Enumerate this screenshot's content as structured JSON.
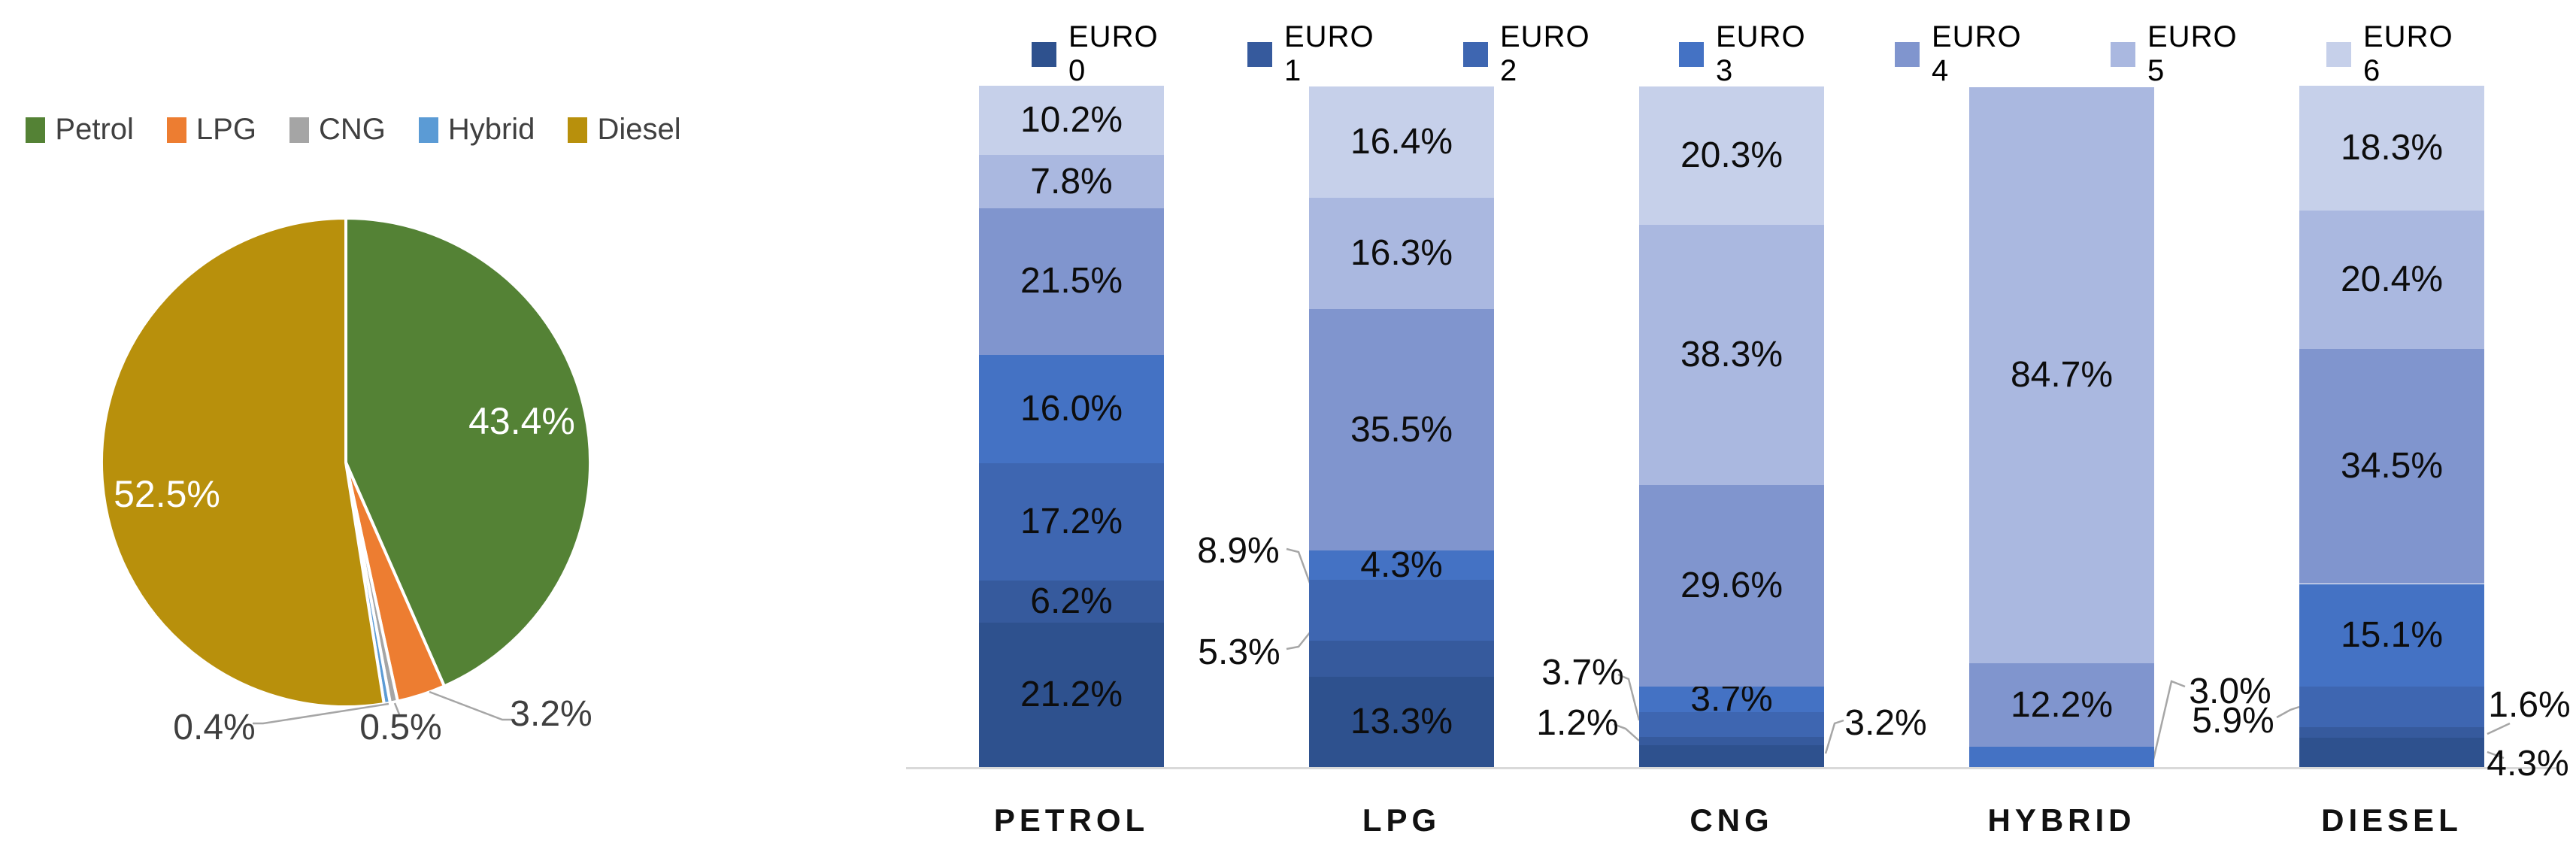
{
  "chart_data": [
    {
      "type": "pie",
      "title": "",
      "legend_position": "top",
      "start_angle_deg_from_top": 0,
      "direction": "clockwise",
      "slices": [
        {
          "label": "Petrol",
          "value": 43.4,
          "label_text": "43.4%",
          "color": "#548235",
          "label_inside": true
        },
        {
          "label": "LPG",
          "value": 3.2,
          "label_text": "3.2%",
          "color": "#ED7D31",
          "label_inside": false
        },
        {
          "label": "CNG",
          "value": 0.5,
          "label_text": "0.5%",
          "color": "#A5A5A5",
          "label_inside": false
        },
        {
          "label": "Hybrid",
          "value": 0.4,
          "label_text": "0.4%",
          "color": "#5B9BD5",
          "label_inside": false
        },
        {
          "label": "Diesel",
          "value": 52.5,
          "label_text": "52.5%",
          "color": "#B8900C",
          "label_inside": true
        }
      ],
      "slice_border_color": "#FFFFFF",
      "leader_line_color": "#A6A6A6"
    },
    {
      "type": "stacked_bar_100",
      "title": "",
      "legend_position": "top",
      "grid": false,
      "ylim": [
        0,
        100
      ],
      "axis_line_color": "#D9D9D9",
      "categories": [
        "PETROL",
        "LPG",
        "CNG",
        "HYBRID",
        "DIESEL"
      ],
      "series": [
        {
          "name": "EURO 0",
          "color": "#2E518E",
          "values": [
            21.2,
            13.3,
            3.2,
            0,
            4.3
          ]
        },
        {
          "name": "EURO 1",
          "color": "#365A9D",
          "values": [
            6.2,
            5.3,
            1.2,
            0,
            1.6
          ]
        },
        {
          "name": "EURO 2",
          "color": "#3E66B1",
          "values": [
            17.2,
            8.9,
            3.7,
            0,
            5.9
          ]
        },
        {
          "name": "EURO 3",
          "color": "#4472C4",
          "values": [
            16.0,
            4.3,
            3.7,
            3.0,
            15.1
          ]
        },
        {
          "name": "EURO 4",
          "color": "#8095CE",
          "values": [
            21.5,
            35.5,
            29.6,
            12.2,
            34.5
          ]
        },
        {
          "name": "EURO 5",
          "color": "#AAB8E0",
          "values": [
            7.8,
            16.3,
            38.3,
            84.7,
            20.4
          ]
        },
        {
          "name": "EURO 6",
          "color": "#C6D0EA",
          "values": [
            10.2,
            16.4,
            20.3,
            0,
            18.3
          ]
        }
      ],
      "label_placements": {
        "PETROL": [
          "in",
          "in",
          "in",
          "in",
          "in",
          "in",
          "in"
        ],
        "LPG": [
          "in",
          "left",
          "left",
          "in",
          "in",
          "in",
          "in"
        ],
        "CNG": [
          "right",
          "left",
          "left",
          "in",
          "in",
          "in",
          "in"
        ],
        "HYBRID": [
          "none",
          "none",
          "none",
          "right",
          "in",
          "in",
          "none"
        ],
        "DIESEL": [
          "right",
          "right",
          "left",
          "in",
          "in",
          "in",
          "in"
        ]
      }
    }
  ]
}
